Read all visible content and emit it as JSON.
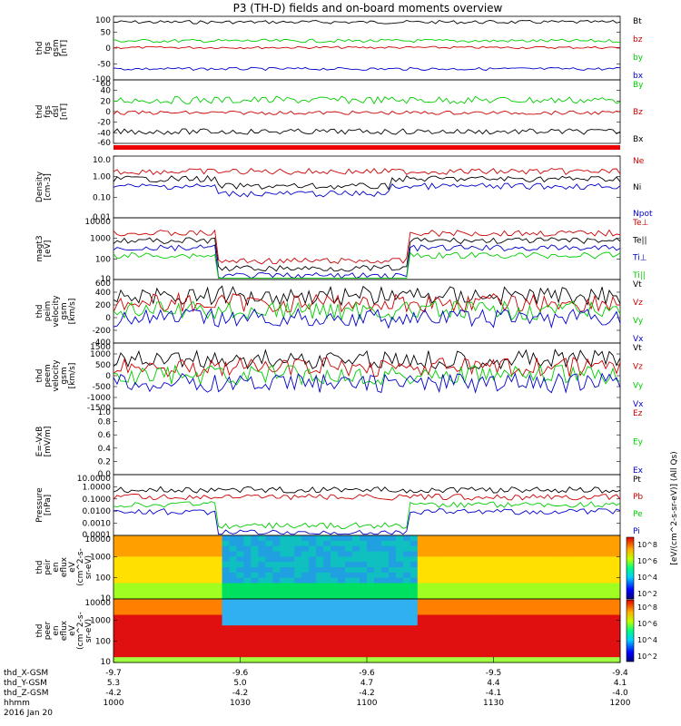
{
  "title": "P3 (TH-D) fields and on-board moments overview",
  "chart_data": [
    {
      "type": "line",
      "panel": "fgs_gsm",
      "ylabel_lines": [
        "thd",
        "fgs",
        "gsm",
        "[nT]"
      ],
      "yticks": [
        100,
        50,
        0,
        -50,
        -100
      ],
      "ylim": [
        -110,
        110
      ],
      "series": [
        {
          "name": "Bt",
          "color": "#000000",
          "base": 90,
          "amp": 6
        },
        {
          "name": "bz",
          "color": "#cc0000",
          "base": 2,
          "amp": 4
        },
        {
          "name": "by",
          "color": "#00cc00",
          "base": 25,
          "amp": 6
        },
        {
          "name": "bx",
          "color": "#0000cc",
          "base": -72,
          "amp": 5
        }
      ]
    },
    {
      "type": "line",
      "panel": "fgs_dsl",
      "ylabel_lines": [
        "thd",
        "fgs",
        "dsl",
        "[nT]"
      ],
      "yticks": [
        60,
        40,
        20,
        0,
        -20,
        -40,
        -60
      ],
      "ylim": [
        -70,
        65
      ],
      "series": [
        {
          "name": "By",
          "color": "#00cc00",
          "base": 22,
          "amp": 8
        },
        {
          "name": "Bz",
          "color": "#cc0000",
          "base": -5,
          "amp": 4
        },
        {
          "name": "Bx",
          "color": "#000000",
          "base": -45,
          "amp": 6
        }
      ]
    },
    {
      "type": "line",
      "panel": "density",
      "ylabel_lines": [
        "Density",
        "[cm-3]"
      ],
      "yticks": [
        "10.0",
        "1.00",
        "0.10",
        "0.01"
      ],
      "ylog": true,
      "ylim": [
        0.01,
        10
      ],
      "series": [
        {
          "name": "Ne",
          "color": "#cc0000"
        },
        {
          "name": "Ni",
          "color": "#000000"
        },
        {
          "name": "Npot",
          "color": "#0000cc"
        }
      ]
    },
    {
      "type": "line",
      "panel": "temperature",
      "ylabel_lines": [
        "magt3",
        "[eV]"
      ],
      "yticks": [
        "10000",
        "1000",
        "100",
        "10"
      ],
      "ylog": true,
      "ylim": [
        10,
        10000
      ],
      "series": [
        {
          "name": "Te⊥",
          "color": "#cc0000"
        },
        {
          "name": "Te||",
          "color": "#000000"
        },
        {
          "name": "Ti⊥",
          "color": "#0000cc"
        },
        {
          "name": "Ti||",
          "color": "#00cc00"
        }
      ]
    },
    {
      "type": "line",
      "panel": "ion_velocity",
      "ylabel_lines": [
        "thd",
        "peim",
        "velocity",
        "gsm",
        "[km/s]"
      ],
      "yticks": [
        600,
        400,
        200,
        0,
        -200,
        -400
      ],
      "ylim": [
        -400,
        620
      ],
      "series": [
        {
          "name": "Vt",
          "color": "#000000"
        },
        {
          "name": "Vz",
          "color": "#cc0000"
        },
        {
          "name": "Vy",
          "color": "#00cc00"
        },
        {
          "name": "Vx",
          "color": "#0000cc"
        }
      ]
    },
    {
      "type": "line",
      "panel": "electron_velocity",
      "ylabel_lines": [
        "thd",
        "peem",
        "velocity",
        "gsm",
        "[km/s]"
      ],
      "yticks": [
        1500,
        1000,
        500,
        0,
        -500,
        -1000,
        -1500
      ],
      "ylim": [
        -1500,
        1500
      ],
      "series": [
        {
          "name": "Vt",
          "color": "#000000"
        },
        {
          "name": "Vz",
          "color": "#cc0000"
        },
        {
          "name": "Vy",
          "color": "#00cc00"
        },
        {
          "name": "Vx",
          "color": "#0000cc"
        }
      ]
    },
    {
      "type": "line",
      "panel": "efield",
      "ylabel_lines": [
        "E=-VxB",
        "[mV/m]"
      ],
      "yticks": [
        "1.0",
        "0.8",
        "0.6",
        "0.4",
        "0.2",
        "0.0"
      ],
      "ylim": [
        0,
        1
      ],
      "series": [
        {
          "name": "Ez",
          "color": "#cc0000"
        },
        {
          "name": "Ey",
          "color": "#00cc00"
        },
        {
          "name": "Ex",
          "color": "#0000cc"
        }
      ]
    },
    {
      "type": "line",
      "panel": "pressure",
      "ylabel_lines": [
        "Pressure",
        "[nPa]"
      ],
      "yticks": [
        "10.0000",
        "1.0000",
        "0.1000",
        "0.0100",
        "0.0010",
        "0.0001"
      ],
      "ylog": true,
      "ylim": [
        0.0001,
        10
      ],
      "series": [
        {
          "name": "Pt",
          "color": "#000000"
        },
        {
          "name": "Pb",
          "color": "#cc0000"
        },
        {
          "name": "Pe",
          "color": "#00cc00"
        },
        {
          "name": "Pi",
          "color": "#0000cc"
        }
      ]
    },
    {
      "type": "heatmap",
      "panel": "ion_spectrogram",
      "ylabel_lines": [
        "thd",
        "peir",
        "en",
        "eflux",
        "eV",
        "(cm^2-s-",
        "sr-eV)"
      ],
      "yticks": [
        "10000",
        "1000",
        "100",
        "10"
      ],
      "ylog": true
    },
    {
      "type": "heatmap",
      "panel": "electron_spectrogram",
      "ylabel_lines": [
        "thd",
        "peer",
        "en",
        "eflux",
        "eV",
        "(cm^2-s-",
        "sr-eV)"
      ],
      "yticks": [
        "10000",
        "1000",
        "100",
        "10"
      ],
      "ylog": true
    }
  ],
  "colorbars": [
    {
      "ticks": [
        "10^8",
        "10^6",
        "10^4",
        "10^2"
      ]
    },
    {
      "ticks": [
        "10^8",
        "10^6",
        "10^4",
        "10^2"
      ]
    }
  ],
  "colorbar_label": "[eV/(cm^2-s-sr-eV)] (All Qs)",
  "xaxis": {
    "labels": [
      "thd_X-GSM",
      "thd_Y-GSM",
      "thd_Z-GSM",
      "hhmm",
      "2016 Jan 20"
    ],
    "ticks": [
      {
        "X": "-9.7",
        "Y": "5.3",
        "Z": "-4.2",
        "hhmm": "1000"
      },
      {
        "X": "-9.6",
        "Y": "5.0",
        "Z": "-4.2",
        "hhmm": "1030"
      },
      {
        "X": "-9.6",
        "Y": "4.7",
        "Z": "-4.2",
        "hhmm": "1100"
      },
      {
        "X": "-9.5",
        "Y": "4.4",
        "Z": "-4.1",
        "hhmm": "1130"
      },
      {
        "X": "-9.4",
        "Y": "4.1",
        "Z": "-4.0",
        "hhmm": "1200"
      }
    ]
  }
}
